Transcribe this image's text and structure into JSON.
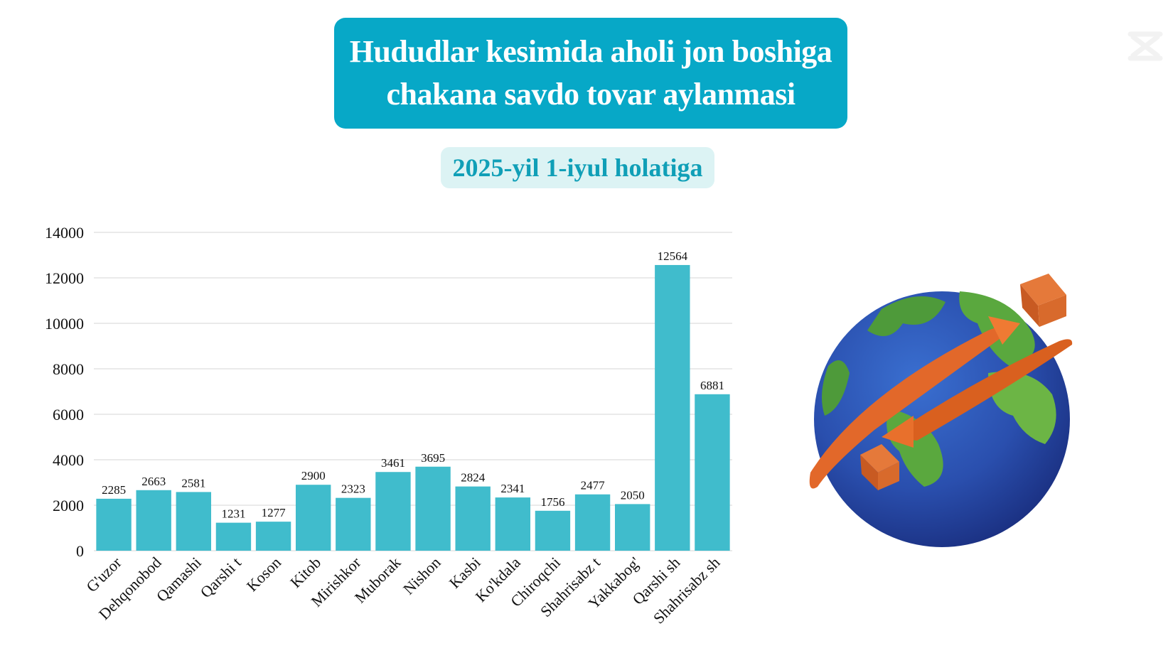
{
  "header": {
    "title_line1": "Hududlar kesimida aholi jon boshiga",
    "title_line2": "chakana savdo tovar aylanmasi",
    "subtitle": "2025-yil 1-iyul holatiga"
  },
  "colors": {
    "title_bg": "#07a8c7",
    "subtitle_bg": "#dcf3f4",
    "subtitle_text": "#109fb7",
    "bar": "#40bccc"
  },
  "chart_data": {
    "type": "bar",
    "categories": [
      "G'uzor",
      "Dehqonobod",
      "Qamashi",
      "Qarshi t",
      "Koson",
      "Kitob",
      "Mirishkor",
      "Muborak",
      "Nishon",
      "Kasbi",
      "Ko'kdala",
      "Chiroqchi",
      "Shahrisabz t",
      "Yakkabog'",
      "Qarshi sh",
      "Shahrisabz sh"
    ],
    "values": [
      2285,
      2663,
      2581,
      1231,
      1277,
      2900,
      2323,
      3461,
      3695,
      2824,
      2341,
      1756,
      2477,
      2050,
      12564,
      6881
    ],
    "ylim": [
      0,
      14000
    ],
    "yticks": [
      0,
      2000,
      4000,
      6000,
      8000,
      10000,
      12000,
      14000
    ],
    "grid": true,
    "data_labels": true,
    "legend": "none"
  },
  "illustration": {
    "icon": "globe-with-orange-arrows-and-boxes-icon",
    "corner_logo": "app-watermark-icon"
  }
}
